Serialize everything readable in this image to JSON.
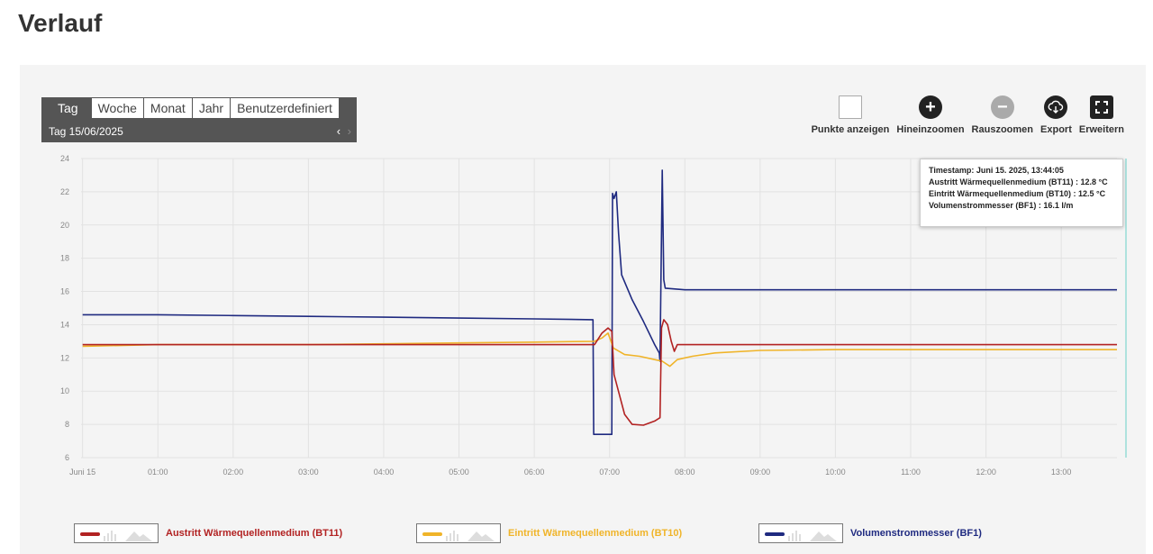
{
  "page": {
    "title": "Verlauf"
  },
  "range": {
    "tabs": [
      "Tag",
      "Woche",
      "Monat",
      "Jahr",
      "Benutzerdefiniert"
    ],
    "active": "Tag",
    "date_label": "Tag  15/06/2025",
    "prev": "‹",
    "next": "›"
  },
  "toolbar": {
    "show_points": "Punkte anzeigen",
    "zoom_in": "Hineinzoomen",
    "zoom_out": "Rauszoomen",
    "export": "Export",
    "expand": "Erweitern"
  },
  "tooltip": {
    "timestamp": "Timestamp: Juni 15. 2025, 13:44:05",
    "line1": "Austritt Wärmequellenmedium (BT11) : 12.8 °C",
    "line2": "Eintritt Wärmequellenmedium (BT10) : 12.5 °C",
    "line3": "Volumenstrommesser (BF1) : 16.1 l/m"
  },
  "colors": {
    "bt11": "#b22222",
    "bt10": "#f0b429",
    "bf1": "#1f2a80",
    "cursor": "#7fd6d0"
  },
  "chart_data": {
    "type": "line",
    "xlabel": "",
    "ylabel": "",
    "ylim": [
      6,
      24
    ],
    "xlim": [
      -0.02,
      13.74
    ],
    "yticks": [
      6,
      8,
      10,
      12,
      14,
      16,
      18,
      20,
      22,
      24
    ],
    "xticks": [
      {
        "label": "Juni 15",
        "value": 0
      },
      {
        "label": "01:00",
        "value": 1
      },
      {
        "label": "02:00",
        "value": 2
      },
      {
        "label": "03:00",
        "value": 3
      },
      {
        "label": "04:00",
        "value": 4
      },
      {
        "label": "05:00",
        "value": 5
      },
      {
        "label": "06:00",
        "value": 6
      },
      {
        "label": "07:00",
        "value": 7
      },
      {
        "label": "08:00",
        "value": 8
      },
      {
        "label": "09:00",
        "value": 9
      },
      {
        "label": "10:00",
        "value": 10
      },
      {
        "label": "11:00",
        "value": 11
      },
      {
        "label": "12:00",
        "value": 12
      },
      {
        "label": "13:00",
        "value": 13
      }
    ],
    "grid": true,
    "legend": "bottom",
    "series": [
      {
        "name": "Austritt Wärmequellenmedium (BT11)",
        "x": [
          0,
          1,
          2,
          3,
          4,
          5,
          6,
          6.8,
          6.9,
          6.98,
          7.03,
          7.06,
          7.1,
          7.2,
          7.3,
          7.45,
          7.6,
          7.67,
          7.69,
          7.72,
          7.77,
          7.82,
          7.86,
          7.9,
          8.5,
          9,
          10,
          11,
          12,
          13,
          13.74
        ],
        "y": [
          12.8,
          12.8,
          12.8,
          12.8,
          12.8,
          12.8,
          12.8,
          12.8,
          13.5,
          13.8,
          13.6,
          11,
          10.3,
          8.6,
          8.0,
          7.95,
          8.2,
          8.4,
          13.8,
          14.3,
          14.0,
          13.0,
          12.4,
          12.8,
          12.8,
          12.8,
          12.8,
          12.8,
          12.8,
          12.8,
          12.8
        ]
      },
      {
        "name": "Eintritt Wärmequellenmedium (BT10)",
        "x": [
          0,
          1,
          2,
          3,
          4,
          5,
          6,
          6.8,
          6.9,
          6.98,
          7.05,
          7.2,
          7.4,
          7.6,
          7.7,
          7.8,
          7.9,
          8.1,
          8.4,
          9,
          10,
          11,
          12,
          13,
          13.74
        ],
        "y": [
          12.7,
          12.8,
          12.8,
          12.8,
          12.85,
          12.9,
          12.95,
          13.0,
          13.2,
          13.5,
          12.6,
          12.2,
          12.1,
          11.9,
          11.8,
          11.5,
          11.9,
          12.1,
          12.3,
          12.45,
          12.5,
          12.5,
          12.5,
          12.5,
          12.5
        ]
      },
      {
        "name": "Volumenstrommesser (BF1)",
        "x": [
          0,
          1,
          2,
          3,
          4,
          5,
          6,
          6.78,
          6.79,
          7.03,
          7.04,
          7.06,
          7.09,
          7.12,
          7.16,
          7.3,
          7.45,
          7.6,
          7.66,
          7.67,
          7.7,
          7.72,
          7.74,
          8,
          9,
          10,
          11,
          12,
          13,
          13.74
        ],
        "y": [
          14.6,
          14.6,
          14.55,
          14.5,
          14.45,
          14.4,
          14.35,
          14.3,
          7.4,
          7.4,
          21.9,
          21.6,
          22.0,
          19.5,
          17.0,
          15.5,
          14.2,
          12.8,
          12.3,
          11.8,
          23.3,
          16.7,
          16.2,
          16.1,
          16.1,
          16.1,
          16.1,
          16.1,
          16.1,
          16.1
        ]
      }
    ]
  },
  "legend": [
    {
      "label": "Austritt Wärmequellenmedium (BT11)",
      "color": "#b22222"
    },
    {
      "label": "Eintritt Wärmequellenmedium (BT10)",
      "color": "#f0b429"
    },
    {
      "label": "Volumenstrommesser (BF1)",
      "color": "#1f2a80"
    }
  ]
}
